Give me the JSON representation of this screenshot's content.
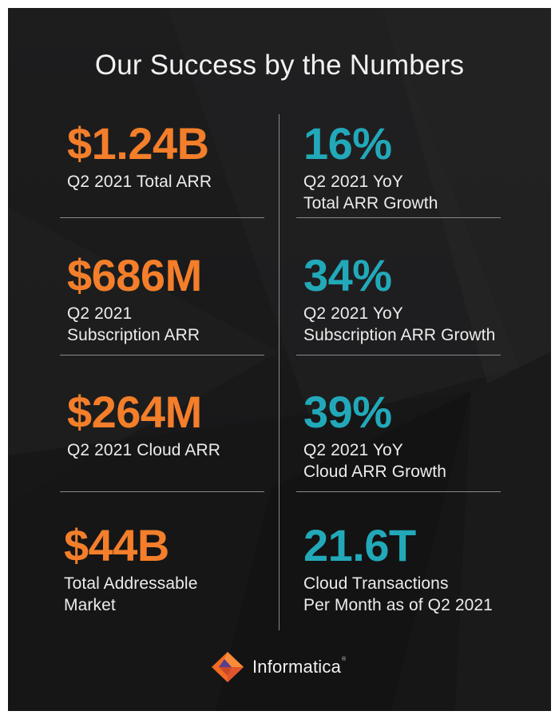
{
  "title": "Our Success by the Numbers",
  "colors": {
    "accent_orange": "#f47e2a",
    "accent_teal": "#22a9b9",
    "background": "#1a1a1b",
    "text": "#ececec"
  },
  "left_stats": [
    {
      "value": "$1.24B",
      "label": "Q2 2021 Total ARR"
    },
    {
      "value": "$686M",
      "label": "Q2 2021\nSubscription ARR"
    },
    {
      "value": "$264M",
      "label": "Q2 2021 Cloud ARR"
    },
    {
      "value": "$44B",
      "label": "Total Addressable\nMarket"
    }
  ],
  "right_stats": [
    {
      "value": "16%",
      "label": "Q2 2021 YoY\nTotal ARR Growth"
    },
    {
      "value": "34%",
      "label": "Q2 2021 YoY\nSubscription ARR Growth"
    },
    {
      "value": "39%",
      "label": "Q2 2021 YoY\nCloud ARR Growth"
    },
    {
      "value": "21.6T",
      "label": "Cloud Transactions\nPer Month as of Q2 2021"
    }
  ],
  "logo": {
    "icon": "informatica-logo-icon",
    "text": "Informatica",
    "mark": "®"
  }
}
